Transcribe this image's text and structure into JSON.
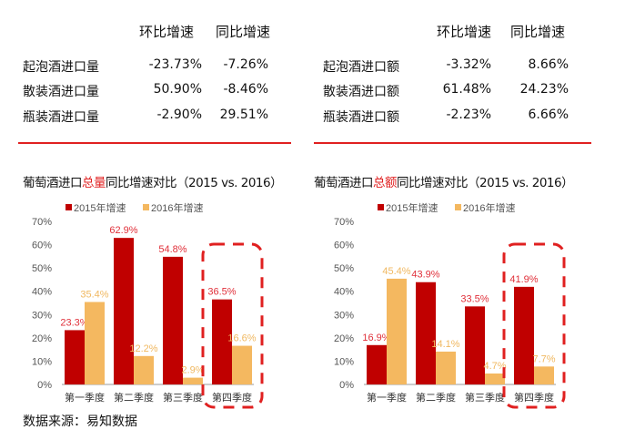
{
  "tables": [
    {
      "headers": [
        "环比增速",
        "同比增速"
      ],
      "rows": [
        {
          "label": "起泡酒进口量",
          "mom": "-23.73%",
          "yoy": "-7.26%"
        },
        {
          "label": "散装酒进口量",
          "mom": "50.90%",
          "yoy": "-8.46%"
        },
        {
          "label": "瓶装酒进口量",
          "mom": "-2.90%",
          "yoy": "29.51%"
        }
      ]
    },
    {
      "headers": [
        "环比增速",
        "同比增速"
      ],
      "rows": [
        {
          "label": "起泡酒进口额",
          "mom": "-3.32%",
          "yoy": "8.66%"
        },
        {
          "label": "散装酒进口额",
          "mom": "61.48%",
          "yoy": "24.23%"
        },
        {
          "label": "瓶装酒进口额",
          "mom": "-2.23%",
          "yoy": "6.66%"
        }
      ]
    }
  ],
  "source": "数据来源：易知数据",
  "colors": {
    "s2015": "#c00000",
    "s2016": "#f4b860",
    "highlight": "#e02020",
    "label2015": "#e0303a",
    "label2016": "#f0b860"
  },
  "chart_data": [
    {
      "type": "bar",
      "title_parts": [
        "葡萄酒进口",
        "总量",
        "同比增速对比（2015 vs. 2016）"
      ],
      "categories": [
        "第一季度",
        "第二季度",
        "第三季度",
        "第四季度"
      ],
      "series": [
        {
          "name": "2015年增速",
          "values": [
            23.3,
            62.9,
            54.8,
            36.5
          ],
          "labels": [
            "23.3%",
            "62.9%",
            "54.8%",
            "36.5%"
          ]
        },
        {
          "name": "2016年增速",
          "values": [
            35.4,
            12.2,
            2.9,
            16.6
          ],
          "labels": [
            "35.4%",
            "12.2%",
            "2.9%",
            "16.6%"
          ]
        }
      ],
      "yticks": [
        "0%",
        "10%",
        "20%",
        "30%",
        "40%",
        "50%",
        "60%",
        "70%"
      ],
      "ylim": [
        0,
        70
      ],
      "grid": false,
      "legend": "top",
      "highlighted_category": "第四季度"
    },
    {
      "type": "bar",
      "title_parts": [
        "葡萄酒进口",
        "总额",
        "同比增速对比（2015 vs. 2016）"
      ],
      "categories": [
        "第一季度",
        "第二季度",
        "第三季度",
        "第四季度"
      ],
      "series": [
        {
          "name": "2015年增速",
          "values": [
            16.9,
            43.9,
            33.5,
            41.9
          ],
          "labels": [
            "16.9%",
            "43.9%",
            "33.5%",
            "41.9%"
          ]
        },
        {
          "name": "2016年增速",
          "values": [
            45.4,
            14.1,
            4.7,
            7.7
          ],
          "labels": [
            "45.4%",
            "14.1%",
            "4.7%",
            "7.7%"
          ]
        }
      ],
      "yticks": [
        "0%",
        "10%",
        "20%",
        "30%",
        "40%",
        "50%",
        "60%",
        "70%"
      ],
      "ylim": [
        0,
        70
      ],
      "grid": false,
      "legend": "top",
      "highlighted_category": "第四季度"
    }
  ]
}
